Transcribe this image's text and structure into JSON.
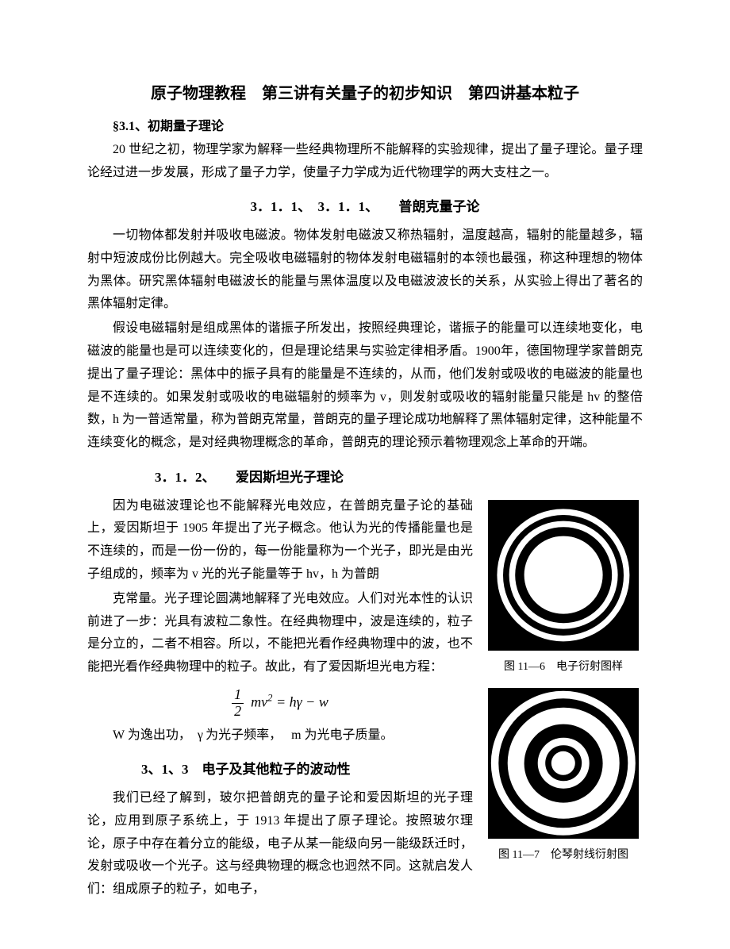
{
  "title": "原子物理教程　第三讲有关量子的初步知识　第四讲基本粒子",
  "s31": {
    "heading": "§3.1、初期量子理论",
    "intro": "20 世纪之初，物理学家为解释一些经典物理所不能解释的实验规律，提出了量子理论。量子理论经过进一步发展，形成了量子力学，使量子力学成为近代物理学的两大支柱之一。"
  },
  "s311": {
    "heading": "3．1．1、　3．1．1、　　普朗克量子论",
    "p1": "一切物体都发射并吸收电磁波。物体发射电磁波又称热辐射，温度越高，辐射的能量越多，辐射中短波成份比例越大。完全吸收电磁辐射的物体发射电磁辐射的本领也最强，称这种理想的物体为黑体。研究黑体辐射电磁波长的能量与黑体温度以及电磁波波长的关系，从实验上得出了著名的黑体辐射定律。",
    "p2": "假设电磁辐射是组成黑体的谐振子所发出，按照经典理论，谐振子的能量可以连续地变化，电磁波的能量也是可以连续变化的，但是理论结果与实验定律相矛盾。1900年，德国物理学家普朗克提出了量子理论：黑体中的振子具有的能量是不连续的，从而，他们发射或吸收的电磁波的能量也是不连续的。如果发射或吸收的电磁辐射的频率为 v，则发射或吸收的辐射能量只能是 hv 的整倍数，h 为一普适常量，称为普朗克常量，普朗克的量子理论成功地解释了黑体辐射定律，这种能量不连续变化的概念，是对经典物理概念的革命，普朗克的理论预示着物理观念上革命的开端。"
  },
  "s312": {
    "heading": "3．1．2、　　爱因斯坦光子理论",
    "p1": "因为电磁波理论也不能解释光电效应，在普朗克量子论的基础上，爱因斯坦于 1905 年提出了光子概念。他认为光的传播能量也是不连续的，而是一份一份的，每一份能量称为一个光子，即光是由光子组成的，频率为 v 光的光子能量等于 hv，h 为普朗",
    "p2": "克常量。光子理论圆满地解释了光电效应。人们对光本性的认识前进了一步：光具有波粒二象性。在经典物理中，波是连续的，粒子是分立的，二者不相容。所以，不能把光看作经典物理中的波，也不能把光看作经典物理中的粒子。故此，有了爱因斯坦光电方程：",
    "formula_note": "W 为逸出功，　γ 为光子频率，　 m 为光电子质量。"
  },
  "s313": {
    "heading": "3、1、3　电子及其他粒子的波动性",
    "p1": "我们已经了解到，玻尔把普朗克的量子论和爱因斯坦的光子理论，应用到原子系统上，于 1913 年提出了原子理论。按照玻尔理论，原子中存在着分立的能级，电子从某一能级向另一能级跃迁时，发射或吸收一个光子。这与经典物理的概念也迥然不同。这就启发人们：组成原子的粒子，如电子，"
  },
  "figures": {
    "fig6": {
      "caption": "图 11—6 电子衍射图样",
      "bg": "#000000",
      "rings_pct": [
        88,
        80,
        72,
        64,
        52
      ],
      "colors": [
        "#ffffff",
        "#000000",
        "#ffffff",
        "#000000",
        "#ffffff"
      ]
    },
    "fig7": {
      "caption": "图 11—7 伦琴射线衍射图",
      "bg": "#000000",
      "rings_pct": [
        96,
        86,
        74,
        52,
        34,
        24,
        16
      ],
      "colors": [
        "#ffffff",
        "#000000",
        "#ffffff",
        "#000000",
        "#ffffff",
        "#000000",
        "#ffffff"
      ]
    }
  },
  "formula": {
    "display": "½ m v² = hγ − w"
  }
}
